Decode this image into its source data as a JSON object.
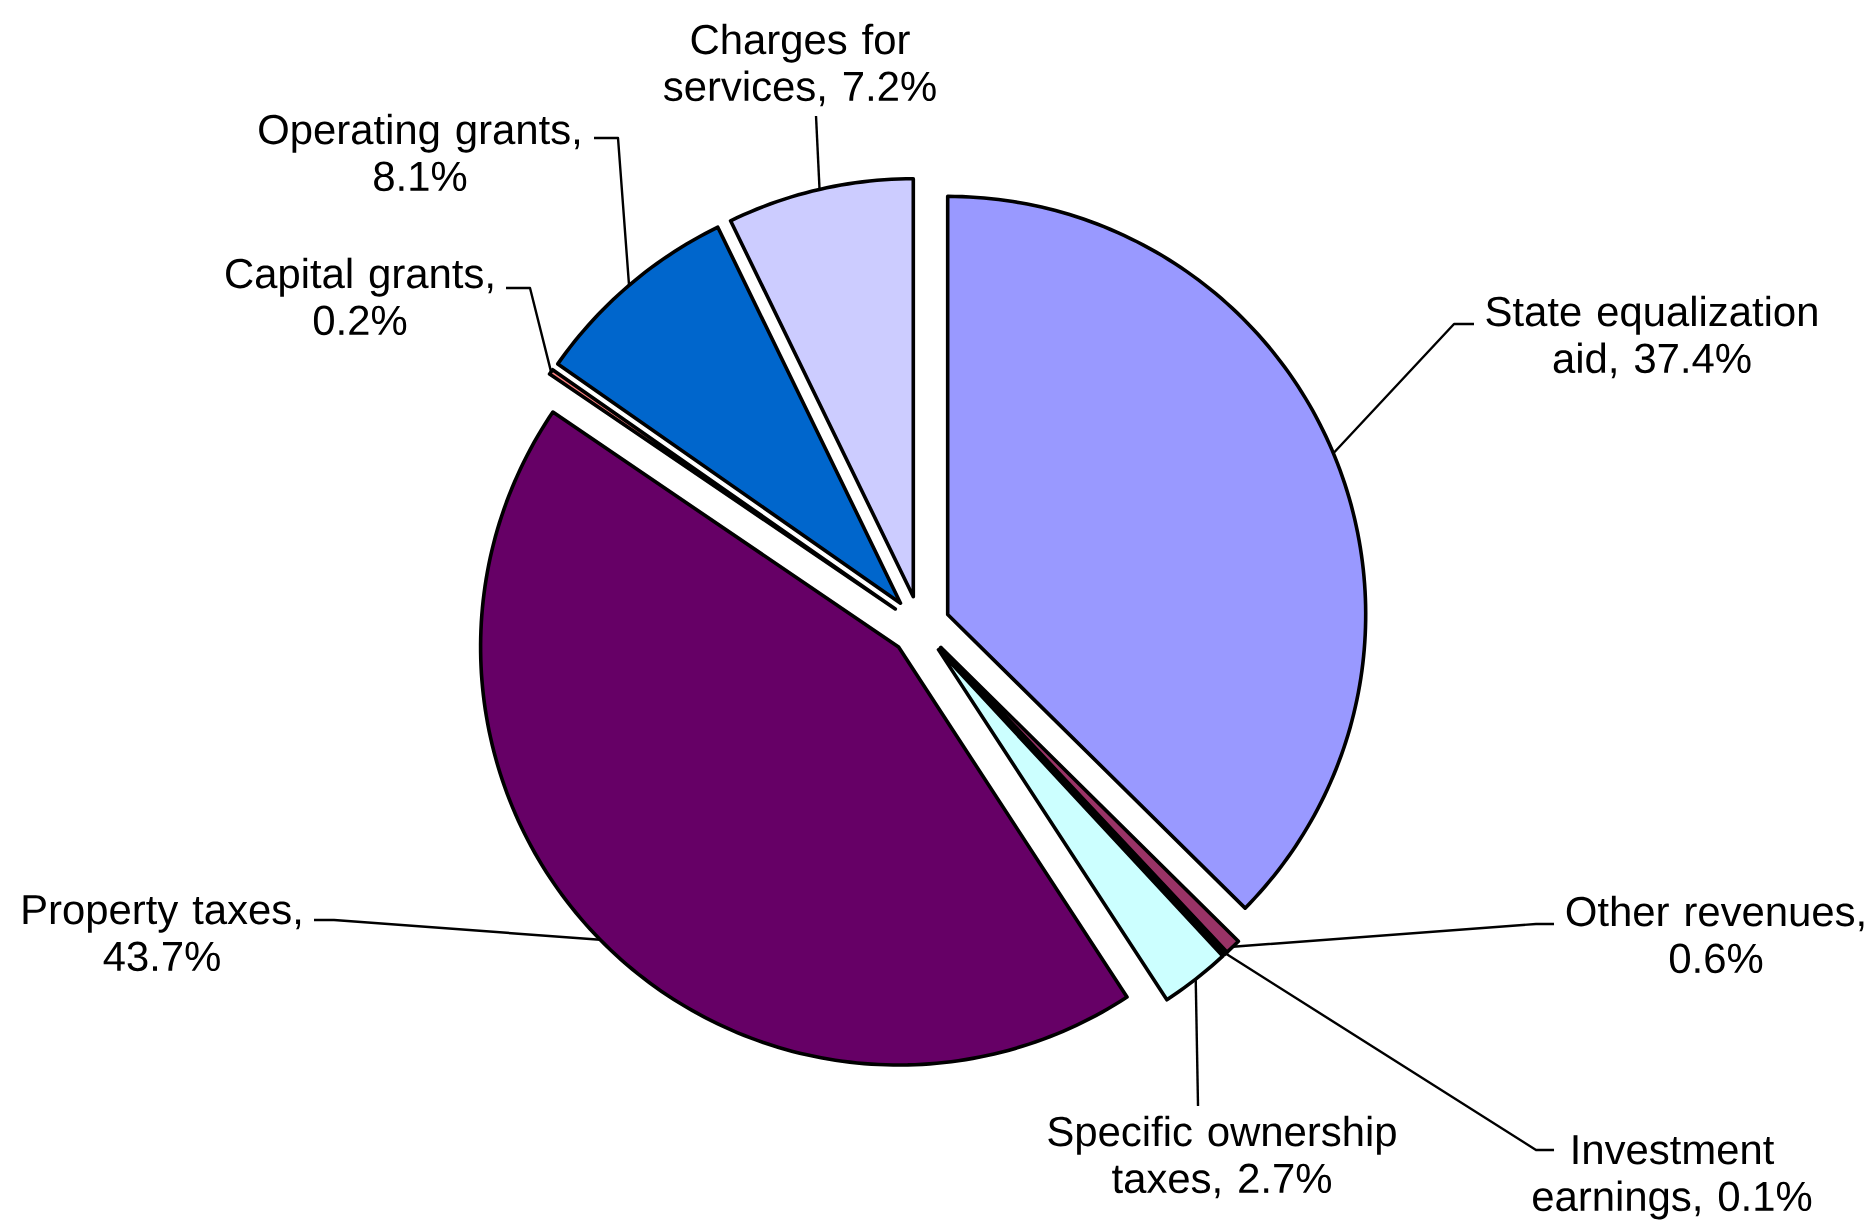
{
  "chart_data": {
    "type": "pie",
    "categories": [
      "State equalization aid, 37.4%",
      "Other revenues, 0.6%",
      "Investment earnings, 0.1%",
      "Specific ownership taxes, 2.7%",
      "Property taxes, 43.7%",
      "Capital grants, 0.2%",
      "Operating grants, 8.1%",
      "Charges for services, 7.2%"
    ],
    "values": [
      37.4,
      0.6,
      0.1,
      2.7,
      43.7,
      0.2,
      8.1,
      7.2
    ],
    "colors": [
      "#9999ff",
      "#993366",
      "#ffffcc",
      "#ccffff",
      "#660066",
      "#ff8080",
      "#0066cc",
      "#ccccff"
    ]
  }
}
